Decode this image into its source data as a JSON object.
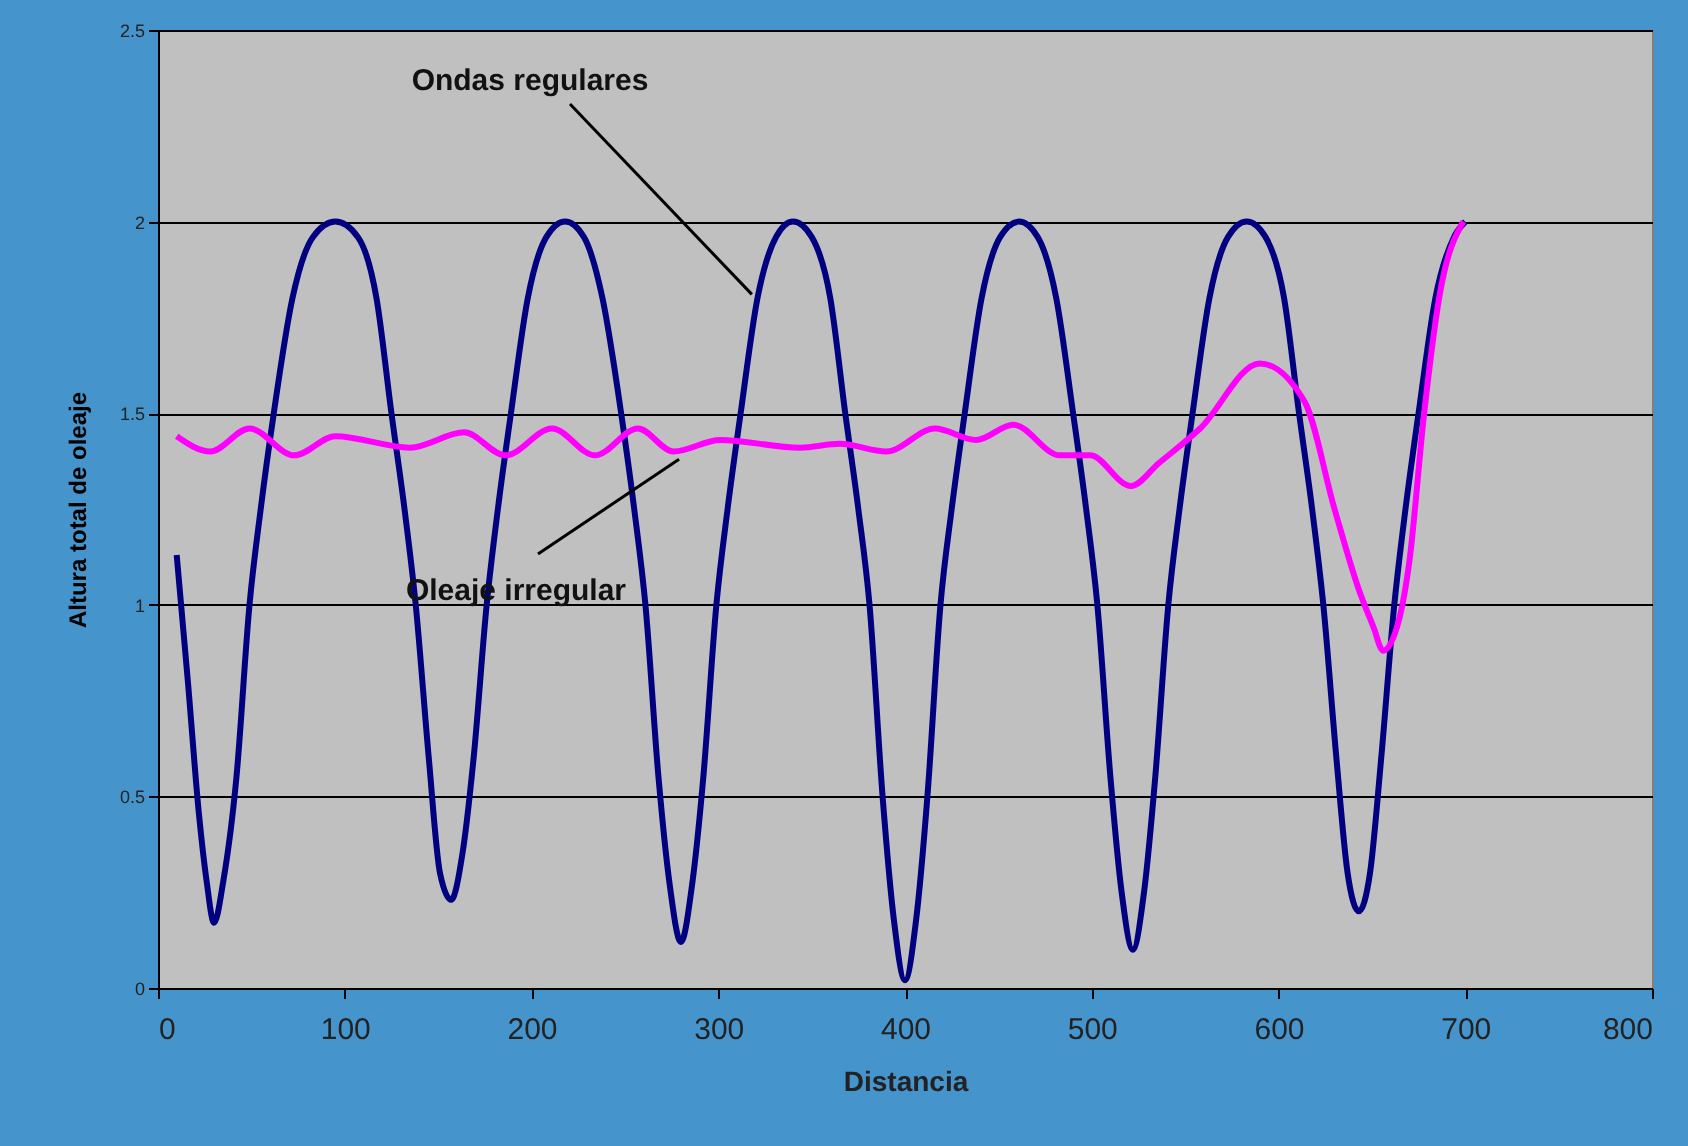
{
  "chart_data": {
    "type": "line",
    "xlabel": "Distancia",
    "ylabel": "Altura total de oleaje",
    "xlim": [
      0,
      800
    ],
    "xticks": [
      0,
      100,
      200,
      300,
      400,
      500,
      600,
      700,
      800
    ],
    "ylim": [
      0,
      2.5
    ],
    "yticks": [
      0,
      0.5,
      1,
      1.5,
      2,
      2.5
    ],
    "grid": "y",
    "annotations": [
      {
        "text": "Ondas regulares",
        "x": 318,
        "y": 1.81
      },
      {
        "text": "Oleaje irregular",
        "x": 279,
        "y": 1.38
      }
    ],
    "series": [
      {
        "color": "#000080",
        "x": [
          10,
          16,
          22,
          26,
          30,
          35,
          42,
          49,
          55,
          62,
          72,
          83,
          95,
          107,
          117,
          125,
          132,
          138,
          145,
          151,
          157,
          163,
          169,
          176,
          182,
          189,
          198,
          208,
          218,
          228,
          238,
          248,
          255,
          261,
          268,
          274,
          280,
          286,
          292,
          299,
          305,
          312,
          321,
          331,
          340,
          350,
          360,
          368,
          375,
          381,
          388,
          394,
          400,
          406,
          412,
          419,
          425,
          432,
          441,
          451,
          461,
          471,
          481,
          490,
          497,
          503,
          510,
          516,
          522,
          528,
          534,
          541,
          547,
          554,
          563,
          573,
          583,
          593,
          603,
          611,
          618,
          624,
          631,
          637,
          643,
          649,
          655,
          662,
          668,
          675,
          684,
          694,
          700
        ],
        "values": [
          1.13,
          0.8,
          0.45,
          0.28,
          0.17,
          0.28,
          0.55,
          1.0,
          1.25,
          1.5,
          1.8,
          1.96,
          2.0,
          1.96,
          1.8,
          1.5,
          1.25,
          1.0,
          0.6,
          0.3,
          0.23,
          0.35,
          0.6,
          1.0,
          1.25,
          1.5,
          1.8,
          1.96,
          2.0,
          1.96,
          1.8,
          1.5,
          1.25,
          1.0,
          0.55,
          0.27,
          0.12,
          0.27,
          0.55,
          1.0,
          1.25,
          1.5,
          1.8,
          1.96,
          2.0,
          1.96,
          1.8,
          1.5,
          1.25,
          1.0,
          0.5,
          0.18,
          0.02,
          0.18,
          0.5,
          1.0,
          1.25,
          1.5,
          1.8,
          1.96,
          2.0,
          1.96,
          1.8,
          1.5,
          1.25,
          1.0,
          0.55,
          0.25,
          0.1,
          0.25,
          0.55,
          1.0,
          1.25,
          1.5,
          1.8,
          1.96,
          2.0,
          1.96,
          1.8,
          1.5,
          1.25,
          1.0,
          0.6,
          0.3,
          0.2,
          0.3,
          0.6,
          1.0,
          1.25,
          1.5,
          1.8,
          1.96,
          2.0
        ]
      },
      {
        "color": "#ff00ff",
        "x": [
          10,
          28,
          49,
          73,
          95,
          135,
          164,
          186,
          211,
          234,
          257,
          276,
          301,
          344,
          365,
          390,
          416,
          438,
          458,
          483,
          499,
          521,
          536,
          558,
          590,
          614,
          630,
          643,
          651,
          656,
          665,
          670,
          678,
          686,
          699
        ],
        "values": [
          1.44,
          1.4,
          1.46,
          1.39,
          1.44,
          1.41,
          1.45,
          1.39,
          1.46,
          1.39,
          1.46,
          1.4,
          1.43,
          1.41,
          1.42,
          1.4,
          1.46,
          1.43,
          1.47,
          1.39,
          1.39,
          1.31,
          1.37,
          1.46,
          1.63,
          1.53,
          1.25,
          1.04,
          0.94,
          0.88,
          0.97,
          1.11,
          1.5,
          1.8,
          2.0
        ]
      }
    ]
  }
}
